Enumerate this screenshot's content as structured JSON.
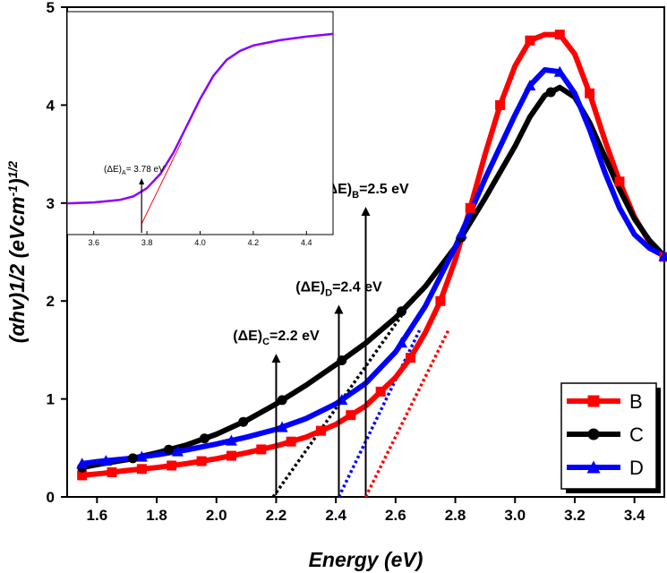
{
  "chart_data": {
    "type": "line",
    "title": "",
    "xlabel": "Energy (eV)",
    "ylabel": "(αhv)1/2 (eVcm⁻¹)¹ᐟ²",
    "ylabel_parts": {
      "main": "(αhv)1/2 (eVcm",
      "sup1": "-1",
      "close": ")",
      "sup2": "1/2"
    },
    "xlim": [
      1.5,
      3.5
    ],
    "ylim": [
      0,
      5
    ],
    "xticks": [
      "1.6",
      "1.8",
      "2.0",
      "2.2",
      "2.4",
      "2.6",
      "2.8",
      "3.0",
      "3.2",
      "3.4"
    ],
    "xtick_values": [
      1.6,
      1.8,
      2.0,
      2.2,
      2.4,
      2.6,
      2.8,
      3.0,
      3.2,
      3.4
    ],
    "yticks": [
      "0",
      "1",
      "2",
      "3",
      "4",
      "5"
    ],
    "ytick_values": [
      0,
      1,
      2,
      3,
      4,
      5
    ],
    "legend_position": "bottom-right",
    "series": [
      {
        "name": "B",
        "color": "#ff0000",
        "marker": "square",
        "x": [
          1.55,
          1.62,
          1.7,
          1.8,
          1.9,
          2.0,
          2.1,
          2.2,
          2.3,
          2.4,
          2.5,
          2.6,
          2.65,
          2.7,
          2.75,
          2.8,
          2.85,
          2.9,
          2.95,
          3.0,
          3.05,
          3.1,
          3.15,
          3.2,
          3.25,
          3.3,
          3.35,
          3.4,
          3.45,
          3.5
        ],
        "y": [
          0.22,
          0.24,
          0.27,
          0.3,
          0.34,
          0.39,
          0.45,
          0.52,
          0.61,
          0.74,
          0.93,
          1.22,
          1.42,
          1.68,
          2.0,
          2.42,
          2.95,
          3.5,
          4.0,
          4.4,
          4.66,
          4.72,
          4.72,
          4.52,
          4.12,
          3.65,
          3.22,
          2.86,
          2.6,
          2.45
        ],
        "marker_x": [
          1.55,
          1.65,
          1.75,
          1.85,
          1.95,
          2.05,
          2.15,
          2.25,
          2.35,
          2.45,
          2.55,
          2.65,
          2.75,
          2.85,
          2.95,
          3.05,
          3.15,
          3.25,
          3.35,
          3.5
        ]
      },
      {
        "name": "C",
        "color": "#000000",
        "marker": "circle",
        "x": [
          1.55,
          1.6,
          1.7,
          1.8,
          1.9,
          2.0,
          2.1,
          2.2,
          2.3,
          2.4,
          2.5,
          2.6,
          2.7,
          2.8,
          2.9,
          3.0,
          3.05,
          3.1,
          3.15,
          3.2,
          3.25,
          3.3,
          3.35,
          3.4,
          3.45,
          3.5
        ],
        "y": [
          0.3,
          0.33,
          0.38,
          0.45,
          0.53,
          0.64,
          0.78,
          0.95,
          1.14,
          1.35,
          1.57,
          1.83,
          2.15,
          2.55,
          3.05,
          3.58,
          3.88,
          4.1,
          4.18,
          4.08,
          3.82,
          3.48,
          3.14,
          2.84,
          2.62,
          2.46
        ],
        "marker_x": [
          1.55,
          1.72,
          1.84,
          1.96,
          2.09,
          2.22,
          2.42,
          2.62,
          2.82,
          3.12
        ]
      },
      {
        "name": "D",
        "color": "#0000ff",
        "marker": "triangle",
        "x": [
          1.55,
          1.6,
          1.7,
          1.8,
          1.9,
          2.0,
          2.1,
          2.2,
          2.3,
          2.4,
          2.5,
          2.6,
          2.7,
          2.8,
          2.9,
          3.0,
          3.05,
          3.1,
          3.15,
          3.2,
          3.25,
          3.3,
          3.35,
          3.4,
          3.45,
          3.5
        ],
        "y": [
          0.34,
          0.36,
          0.39,
          0.43,
          0.48,
          0.54,
          0.61,
          0.69,
          0.8,
          0.95,
          1.16,
          1.48,
          1.95,
          2.55,
          3.25,
          3.9,
          4.2,
          4.36,
          4.34,
          4.12,
          3.75,
          3.32,
          2.95,
          2.68,
          2.54,
          2.46
        ],
        "marker_x": [
          1.55,
          1.63,
          1.75,
          1.87,
          2.05,
          2.22,
          2.42,
          2.62,
          2.82,
          3.05,
          3.15,
          3.5
        ]
      }
    ],
    "tangent_lines": [
      {
        "series": "B",
        "color": "#ff0000",
        "x": [
          2.5,
          2.78
        ],
        "y": [
          0,
          1.72
        ]
      },
      {
        "series": "C",
        "color": "#000000",
        "x": [
          2.19,
          2.62
        ],
        "y": [
          0,
          1.85
        ]
      },
      {
        "series": "D",
        "color": "#0000ff",
        "x": [
          2.41,
          2.68
        ],
        "y": [
          0,
          1.7
        ]
      }
    ],
    "annotations": [
      {
        "pre": "(ΔE)",
        "sub": "C",
        "post": "=2.2 eV",
        "x": 2.2,
        "text_y": 1.58
      },
      {
        "pre": "(ΔE)",
        "sub": "D",
        "post": "=2.4 eV",
        "x": 2.41,
        "text_y": 2.08
      },
      {
        "pre": "(ΔE)",
        "sub": "B",
        "post": "=2.5 eV",
        "x": 2.5,
        "text_y": 3.08
      }
    ],
    "inset": {
      "xlim": [
        3.5,
        4.5
      ],
      "ylim": [
        2.5,
        5.0
      ],
      "xticks": [
        "3.6",
        "3.8",
        "4.0",
        "4.2",
        "4.4"
      ],
      "xtick_values": [
        3.6,
        3.8,
        4.0,
        4.2,
        4.4
      ],
      "curve_color": "#8b00ff",
      "x": [
        3.5,
        3.6,
        3.7,
        3.75,
        3.8,
        3.85,
        3.9,
        3.95,
        4.0,
        4.05,
        4.1,
        4.15,
        4.2,
        4.3,
        4.4,
        4.5
      ],
      "y": [
        2.85,
        2.86,
        2.89,
        2.93,
        3.02,
        3.18,
        3.42,
        3.72,
        4.02,
        4.28,
        4.46,
        4.56,
        4.62,
        4.68,
        4.72,
        4.75
      ],
      "tangent": {
        "color": "#ff0000",
        "x": [
          3.78,
          3.93
        ],
        "y": [
          2.62,
          3.54
        ]
      },
      "annotation": {
        "pre": "(ΔE)",
        "sub": "A",
        "post": "= 3.78 eV",
        "x": 3.78
      }
    }
  }
}
